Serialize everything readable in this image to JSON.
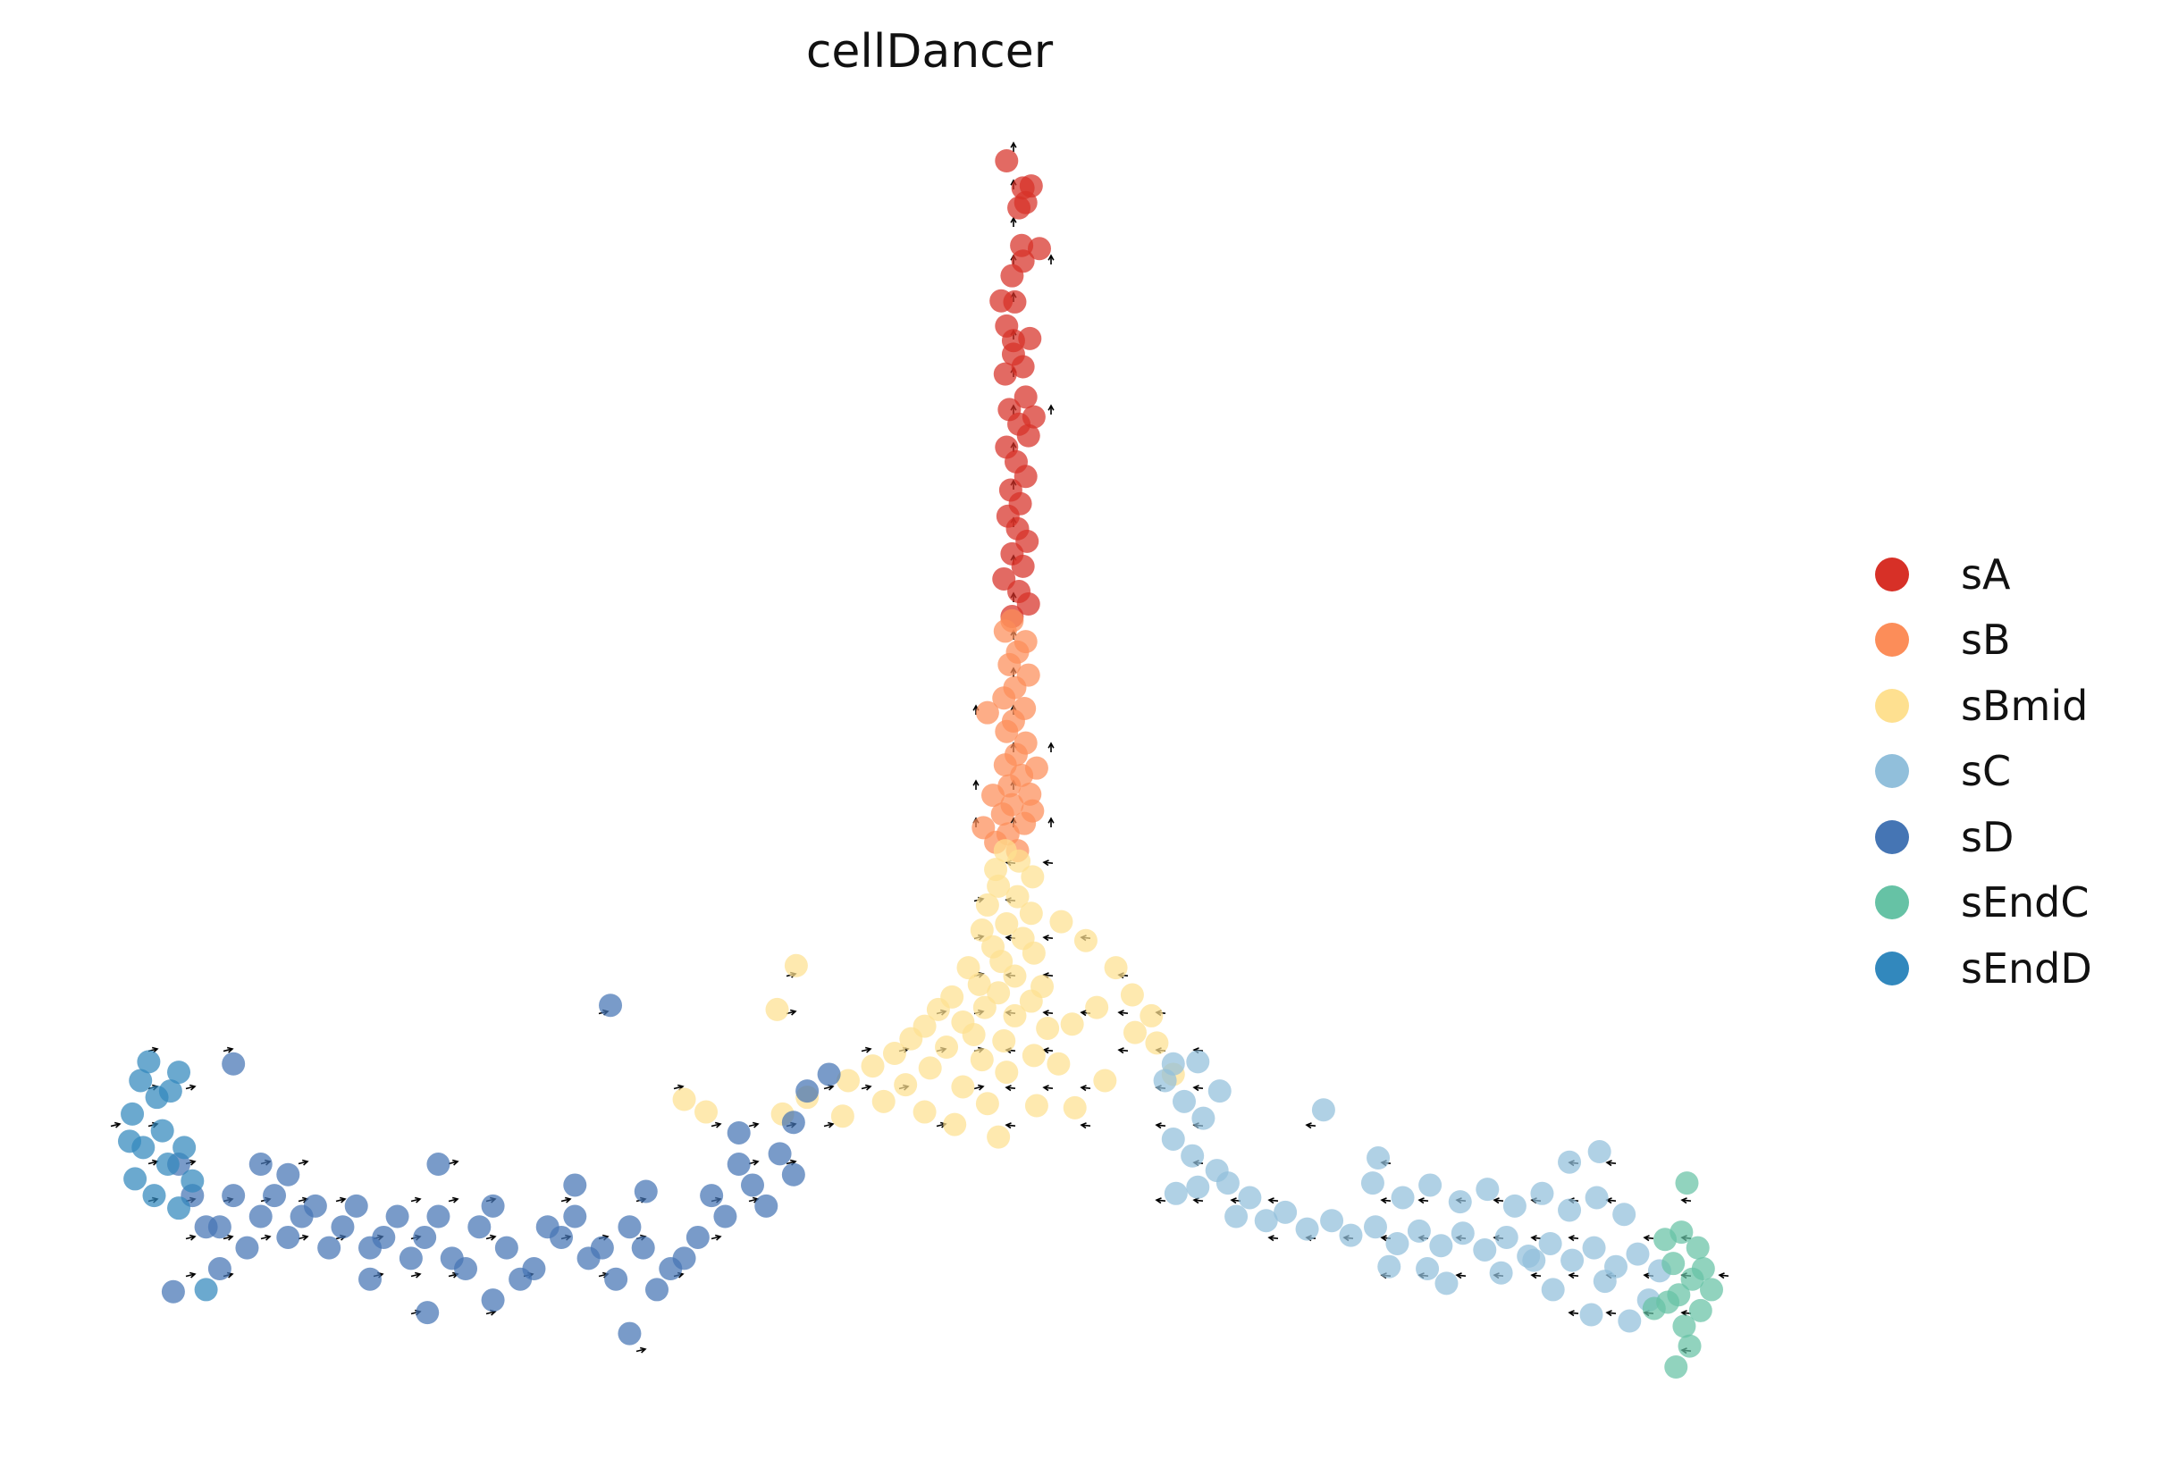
{
  "chart_data": {
    "type": "scatter",
    "title": "cellDancer",
    "xlabel": "",
    "ylabel": "",
    "axes_visible": false,
    "grid": false,
    "legend_position": "right",
    "series": [
      {
        "name": "sA",
        "color": "#d73027",
        "points": [
          [
            74,
            81
          ],
          [
            74.4,
            82.6
          ],
          [
            73.5,
            80.5
          ],
          [
            73.8,
            82.4
          ],
          [
            72.6,
            85
          ],
          [
            75,
            76.6
          ],
          [
            73.8,
            75.4
          ],
          [
            73,
            74
          ],
          [
            73.2,
            71.5
          ],
          [
            72.6,
            69.2
          ],
          [
            74.3,
            68
          ],
          [
            73.1,
            66.5
          ],
          [
            73.8,
            65.3
          ],
          [
            72.5,
            64.6
          ],
          [
            74,
            62.4
          ],
          [
            72.8,
            61.2
          ],
          [
            73.5,
            59.8
          ],
          [
            74.2,
            58.7
          ],
          [
            72.6,
            57.6
          ],
          [
            73.3,
            56.2
          ],
          [
            74,
            54.8
          ],
          [
            72.9,
            53.5
          ],
          [
            73.6,
            52.2
          ],
          [
            72.7,
            51
          ],
          [
            73.4,
            49.8
          ],
          [
            74.1,
            48.6
          ],
          [
            73,
            47.4
          ],
          [
            73.8,
            46.2
          ],
          [
            72.4,
            45
          ],
          [
            73.5,
            43.8
          ],
          [
            74.2,
            42.6
          ],
          [
            73,
            41.4
          ],
          [
            73.7,
            76.9
          ],
          [
            72.2,
            71.6
          ],
          [
            74.6,
            60.5
          ],
          [
            73.1,
            67.8
          ]
        ]
      },
      {
        "name": "sB",
        "color": "#fc8d59",
        "points": [
          [
            73,
            41
          ],
          [
            72.5,
            40
          ],
          [
            74,
            39
          ],
          [
            73.4,
            38
          ],
          [
            72.8,
            36.8
          ],
          [
            74.2,
            35.8
          ],
          [
            73.2,
            34.6
          ],
          [
            72.4,
            33.6
          ],
          [
            73.9,
            32.6
          ],
          [
            73.1,
            31.4
          ],
          [
            72.6,
            30.4
          ],
          [
            74,
            29.3
          ],
          [
            73.3,
            28.2
          ],
          [
            72.5,
            27.2
          ],
          [
            73.7,
            26.2
          ],
          [
            72.8,
            25.2
          ],
          [
            74.3,
            24.4
          ],
          [
            73,
            23.4
          ],
          [
            72.3,
            22.5
          ],
          [
            73.9,
            21.6
          ],
          [
            72.7,
            20.6
          ],
          [
            71.8,
            19.8
          ],
          [
            73.4,
            19
          ],
          [
            74.5,
            22.8
          ],
          [
            71.6,
            24.3
          ],
          [
            70.9,
            21.2
          ],
          [
            74.8,
            26.9
          ],
          [
            71.2,
            32.2
          ]
        ]
      },
      {
        "name": "sBmid",
        "color": "#fee090",
        "points": [
          [
            72.5,
            19
          ],
          [
            73.5,
            18
          ],
          [
            71.8,
            17.2
          ],
          [
            74.5,
            16.5
          ],
          [
            72,
            15.6
          ],
          [
            73.4,
            14.6
          ],
          [
            71.2,
            13.8
          ],
          [
            74.4,
            13
          ],
          [
            72.6,
            12
          ],
          [
            70.8,
            11.4
          ],
          [
            73.8,
            10.6
          ],
          [
            71.6,
            9.8
          ],
          [
            74.6,
            9.2
          ],
          [
            72.2,
            8.4
          ],
          [
            69.8,
            7.8
          ],
          [
            73.2,
            7
          ],
          [
            70.6,
            6.2
          ],
          [
            75.2,
            6
          ],
          [
            72,
            5.4
          ],
          [
            68.6,
            5
          ],
          [
            74.4,
            4.6
          ],
          [
            71,
            4
          ],
          [
            67.6,
            3.8
          ],
          [
            73.2,
            3.2
          ],
          [
            69.4,
            2.6
          ],
          [
            66.6,
            2.2
          ],
          [
            75.6,
            2
          ],
          [
            70.2,
            1.4
          ],
          [
            65.6,
            1
          ],
          [
            72.4,
            0.8
          ],
          [
            68.2,
            0.2
          ],
          [
            64.4,
            -0.4
          ],
          [
            74.6,
            -0.6
          ],
          [
            70.8,
            -1
          ],
          [
            62.8,
            -1.6
          ],
          [
            67,
            -1.8
          ],
          [
            76.4,
            -1.4
          ],
          [
            72.6,
            -2.2
          ],
          [
            61,
            -3
          ],
          [
            65.2,
            -3.4
          ],
          [
            69.4,
            -3.6
          ],
          [
            58,
            -4.6
          ],
          [
            63.6,
            -5
          ],
          [
            71.2,
            -5.2
          ],
          [
            74.8,
            -5.4
          ],
          [
            66.6,
            -6
          ],
          [
            56.2,
            -6.2
          ],
          [
            60.6,
            -6.4
          ],
          [
            68.8,
            -7.2
          ],
          [
            72,
            -8.4
          ],
          [
            77.6,
            -5.6
          ],
          [
            78.4,
            10.4
          ],
          [
            80.6,
            7.8
          ],
          [
            81.8,
            5.2
          ],
          [
            79.2,
            4
          ],
          [
            83.6,
            0.6
          ],
          [
            84.8,
            -2.4
          ],
          [
            83.2,
            3.2
          ],
          [
            57.2,
            8
          ],
          [
            55.8,
            3.8
          ],
          [
            50.6,
            -6
          ],
          [
            49,
            -4.8
          ],
          [
            79.8,
            -3
          ],
          [
            82,
            1.6
          ],
          [
            77.4,
            2.4
          ],
          [
            76.6,
            12.2
          ]
        ]
      },
      {
        "name": "sC",
        "color": "#91bfdb",
        "points": [
          [
            84.2,
            -3
          ],
          [
            85.6,
            -5
          ],
          [
            87,
            -6.6
          ],
          [
            84.8,
            -8.6
          ],
          [
            86.2,
            -10.2
          ],
          [
            88,
            -11.6
          ],
          [
            86.6,
            -13.2
          ],
          [
            85,
            -13.8
          ],
          [
            88.8,
            -12.8
          ],
          [
            90.4,
            -14.2
          ],
          [
            89.4,
            -16
          ],
          [
            91.6,
            -16.4
          ],
          [
            93,
            -15.6
          ],
          [
            94.6,
            -17.2
          ],
          [
            96.4,
            -16.4
          ],
          [
            97.8,
            -17.8
          ],
          [
            99.6,
            -17
          ],
          [
            101.2,
            -18.6
          ],
          [
            102.8,
            -17.4
          ],
          [
            104.4,
            -18.8
          ],
          [
            106,
            -17.6
          ],
          [
            107.6,
            -19.2
          ],
          [
            109.2,
            -18
          ],
          [
            110.8,
            -19.8
          ],
          [
            112.4,
            -18.6
          ],
          [
            114,
            -20.2
          ],
          [
            115.6,
            -19
          ],
          [
            117.2,
            -20.8
          ],
          [
            118.8,
            -19.6
          ],
          [
            120.4,
            -21.2
          ],
          [
            99.4,
            -12.8
          ],
          [
            101.6,
            -14.2
          ],
          [
            103.6,
            -13
          ],
          [
            105.8,
            -14.6
          ],
          [
            107.8,
            -13.4
          ],
          [
            109.8,
            -15
          ],
          [
            111.8,
            -13.8
          ],
          [
            113.8,
            -15.4
          ],
          [
            115.8,
            -14.2
          ],
          [
            117.8,
            -15.8
          ],
          [
            100.6,
            -20.8
          ],
          [
            104.8,
            -22.4
          ],
          [
            108.8,
            -21.4
          ],
          [
            112.6,
            -23
          ],
          [
            116.4,
            -22.2
          ],
          [
            119.6,
            -24
          ],
          [
            118.2,
            -26
          ],
          [
            115.4,
            -25.4
          ],
          [
            95.8,
            -5.8
          ],
          [
            99.8,
            -10.4
          ],
          [
            113.8,
            -10.8
          ],
          [
            116,
            -9.8
          ],
          [
            88.2,
            -4
          ],
          [
            84.8,
            -1.4
          ],
          [
            86.6,
            -1.2
          ],
          [
            111.2,
            -20.2
          ],
          [
            103.4,
            -21
          ]
        ]
      },
      {
        "name": "sD",
        "color": "#4575b4",
        "points": [
          [
            14,
            -17
          ],
          [
            16,
            -14
          ],
          [
            18,
            -16
          ],
          [
            20,
            -18
          ],
          [
            22,
            -15
          ],
          [
            24,
            -17
          ],
          [
            26,
            -19
          ],
          [
            28,
            -16
          ],
          [
            30,
            -18
          ],
          [
            32,
            -20
          ],
          [
            34,
            -17
          ],
          [
            36,
            -19
          ],
          [
            38,
            -21
          ],
          [
            40,
            -18
          ],
          [
            42,
            -20
          ],
          [
            44,
            -22
          ],
          [
            46,
            -19
          ],
          [
            48,
            -21
          ],
          [
            50,
            -18
          ],
          [
            52,
            -16
          ],
          [
            54,
            -13
          ],
          [
            56,
            -10
          ],
          [
            57,
            -7
          ],
          [
            58,
            -4
          ],
          [
            13,
            -14
          ],
          [
            15,
            -17
          ],
          [
            17,
            -19
          ],
          [
            19,
            -14
          ],
          [
            21,
            -16
          ],
          [
            23,
            -19
          ],
          [
            25,
            -15
          ],
          [
            27,
            -18
          ],
          [
            29,
            -20
          ],
          [
            31,
            -16
          ],
          [
            33,
            -21
          ],
          [
            35,
            -15
          ],
          [
            37,
            -22
          ],
          [
            39,
            -17
          ],
          [
            41,
            -16
          ],
          [
            43,
            -19
          ],
          [
            45,
            -17
          ],
          [
            47,
            -23
          ],
          [
            49,
            -20
          ],
          [
            51,
            -14
          ],
          [
            53,
            -11
          ],
          [
            55,
            -15
          ],
          [
            57,
            -12
          ],
          [
            35,
            -24
          ],
          [
            26,
            -22
          ],
          [
            15,
            -21
          ],
          [
            12,
            -11
          ],
          [
            31,
            -11
          ],
          [
            20,
            -12
          ],
          [
            41,
            -13
          ],
          [
            18,
            -11
          ],
          [
            53,
            -8
          ],
          [
            59.6,
            -2.4
          ],
          [
            46.2,
            -13.6
          ],
          [
            43.6,
            4.2
          ],
          [
            16,
            -1.4
          ],
          [
            11.6,
            -23.2
          ],
          [
            30.2,
            -25.2
          ],
          [
            45,
            -27.2
          ]
        ]
      },
      {
        "name": "sEndC",
        "color": "#66c2a5",
        "points": [
          [
            122,
            -17.5
          ],
          [
            123.2,
            -19
          ],
          [
            121.4,
            -20.5
          ],
          [
            122.8,
            -22
          ],
          [
            121.8,
            -23.5
          ],
          [
            123.4,
            -25
          ],
          [
            122.2,
            -26.5
          ],
          [
            121,
            -24.2
          ],
          [
            123.6,
            -21
          ],
          [
            120.8,
            -18.2
          ],
          [
            122.6,
            -28.4
          ],
          [
            121.6,
            -30.4
          ],
          [
            122.4,
            -12.8
          ],
          [
            120,
            -24.8
          ],
          [
            124.2,
            -23
          ]
        ]
      },
      {
        "name": "sEndD",
        "color": "#3288bd",
        "points": [
          [
            9.2,
            -3
          ],
          [
            10.4,
            -4.6
          ],
          [
            8.6,
            -6.2
          ],
          [
            10.8,
            -7.8
          ],
          [
            9.4,
            -9.4
          ],
          [
            11.2,
            -11
          ],
          [
            8.8,
            -12.4
          ],
          [
            10.2,
            -14
          ],
          [
            12,
            -15.2
          ],
          [
            11.4,
            -4
          ],
          [
            8.4,
            -8.8
          ],
          [
            12.4,
            -9.4
          ],
          [
            9.8,
            -1.2
          ],
          [
            12,
            -2.2
          ],
          [
            13,
            -12.6
          ],
          [
            14,
            -23
          ]
        ]
      }
    ]
  }
}
